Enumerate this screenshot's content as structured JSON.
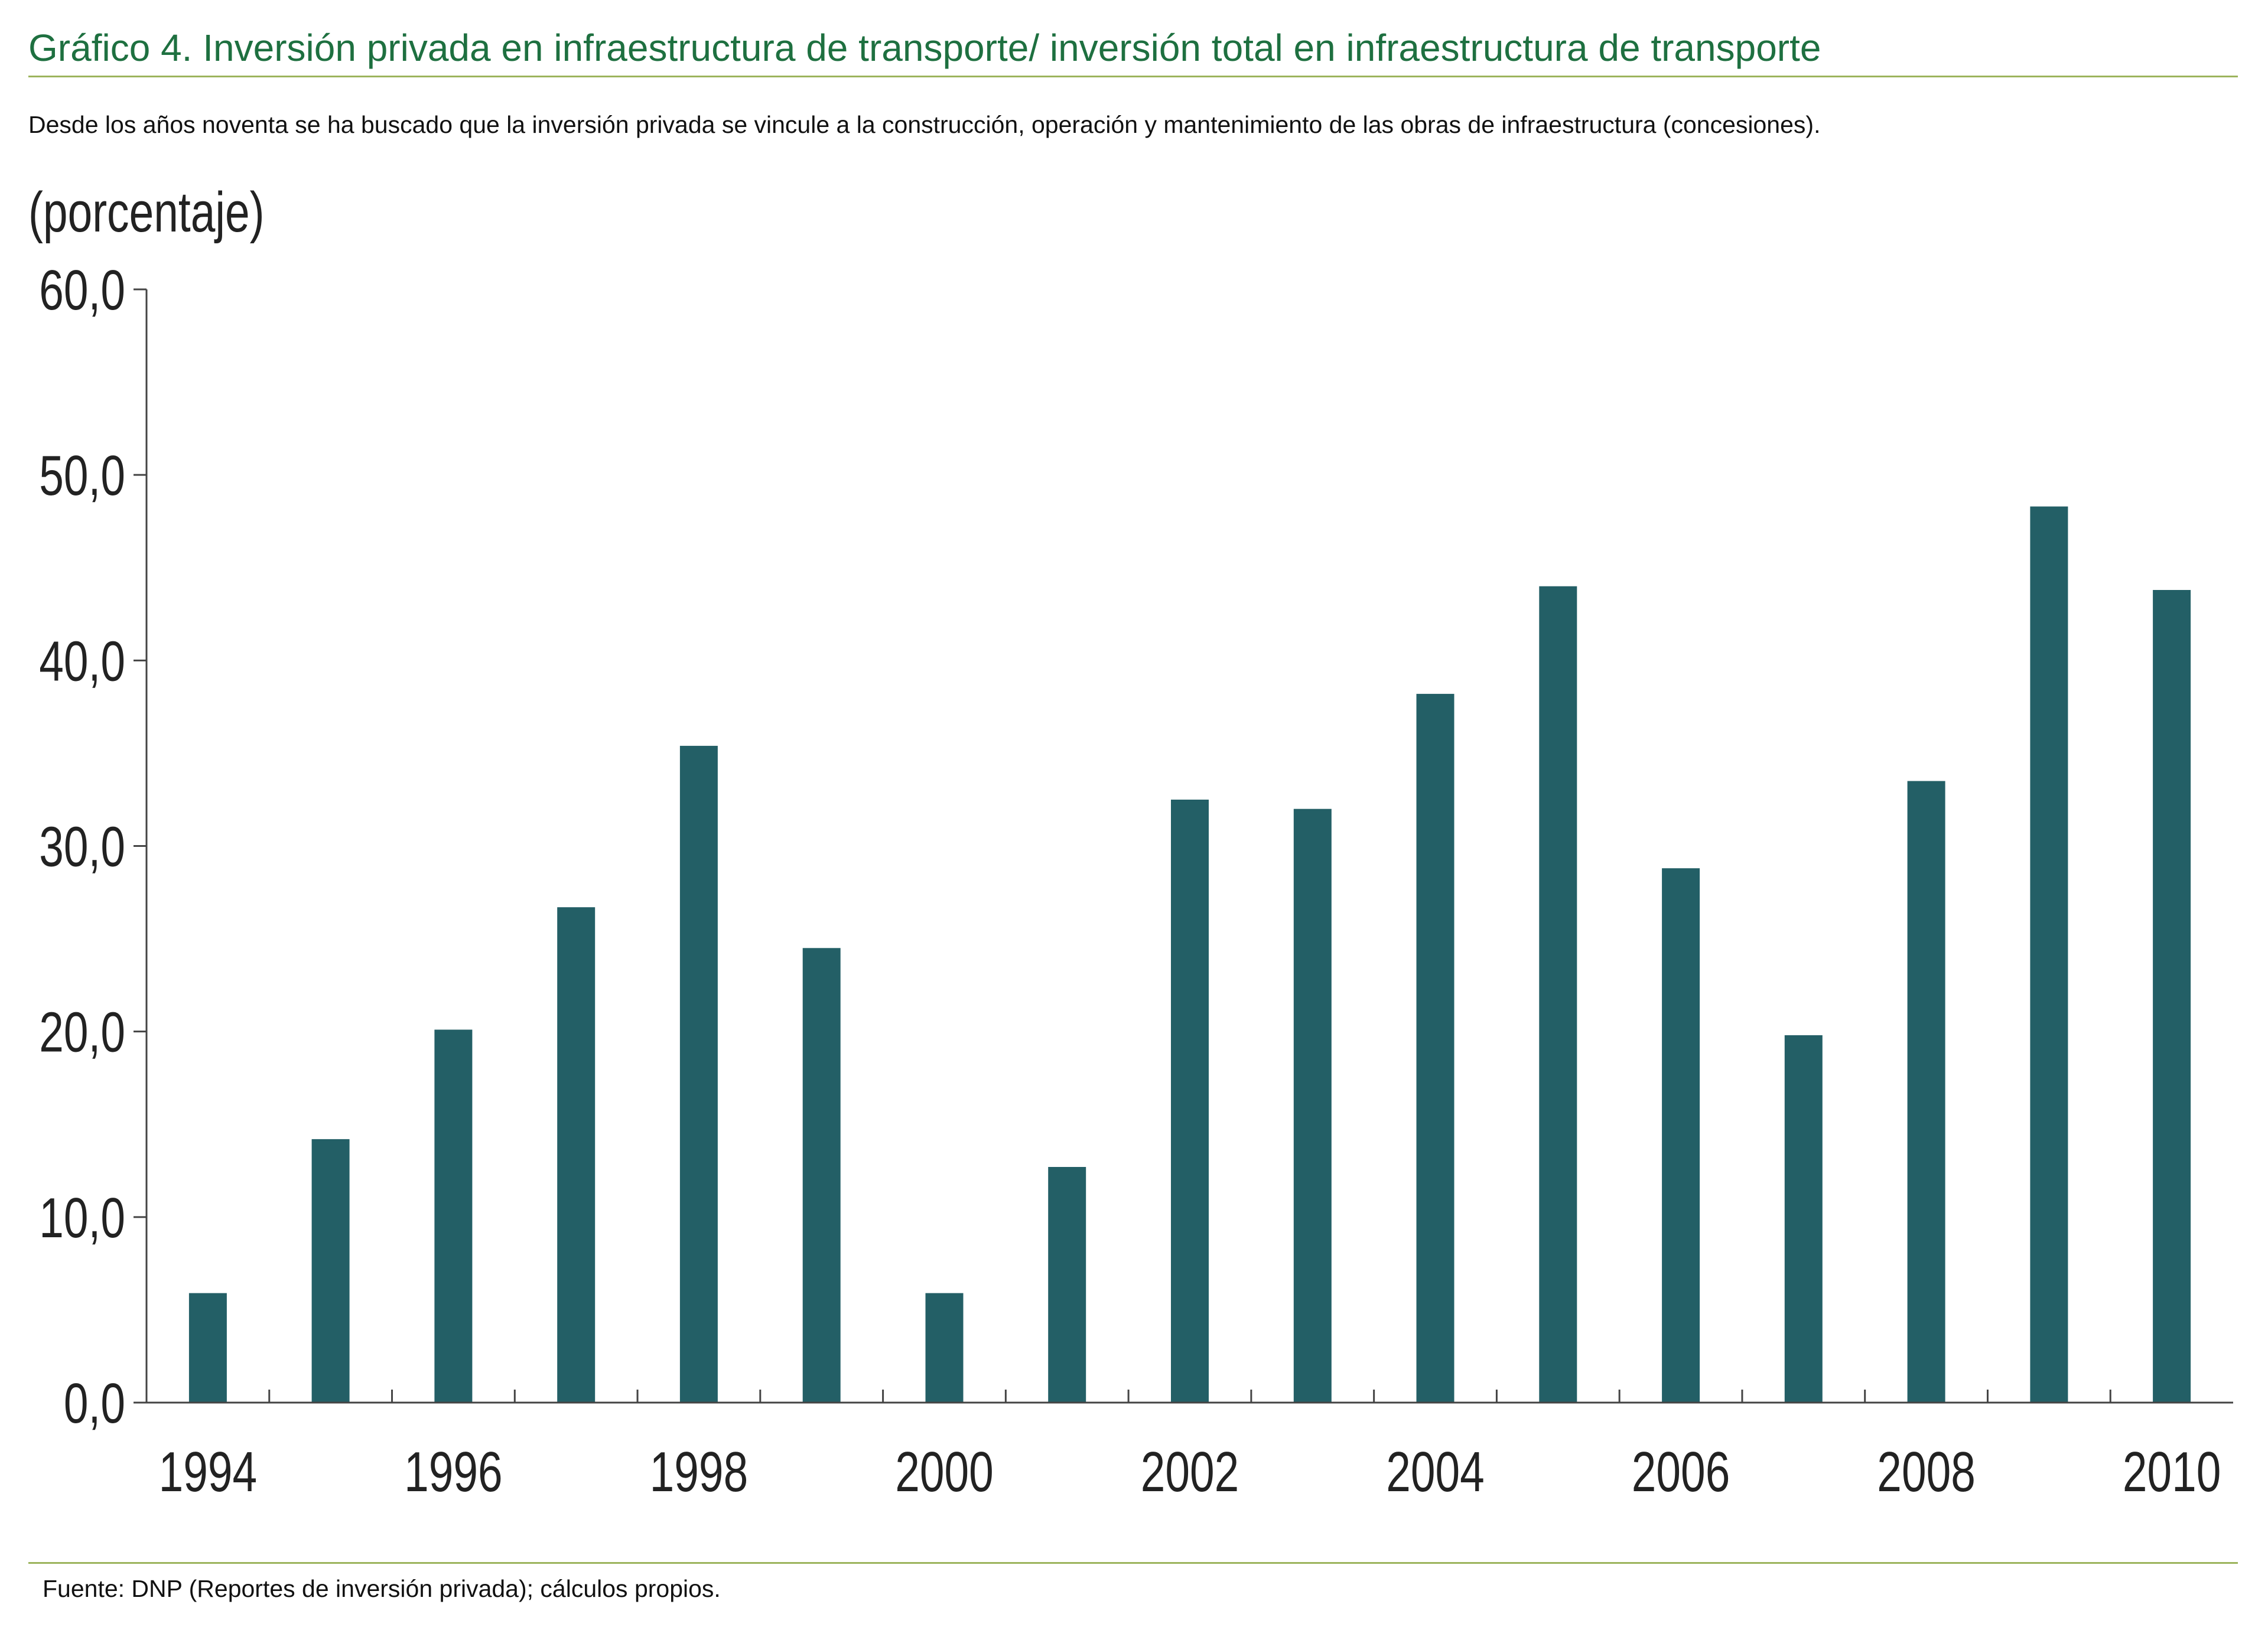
{
  "header": {
    "title": "Gráfico 4. Inversión privada en infraestructura de transporte/ inversión total en infraestructura de transporte",
    "subtitle": "Desde los años noventa se ha buscado que la inversión privada se vincule a la construcción, operación y mantenimiento de las obras de infraestructura (concesiones).",
    "unit_label": "(porcentaje)"
  },
  "footer": {
    "source": "Fuente: DNP (Reportes de inversión privada); cálculos propios."
  },
  "colors": {
    "bar": "#235f66",
    "title": "#1e7040",
    "rule": "#9cb45c",
    "axis": "#444444"
  },
  "chart_data": {
    "type": "bar",
    "title": "Gráfico 4. Inversión privada en infraestructura de transporte/ inversión total en infraestructura de transporte",
    "xlabel": "",
    "ylabel": "(porcentaje)",
    "ylim": [
      0,
      60
    ],
    "yticks": [
      "0,0",
      "10,0",
      "20,0",
      "30,0",
      "40,0",
      "50,0",
      "60,0"
    ],
    "ytick_values": [
      0,
      10,
      20,
      30,
      40,
      50,
      60
    ],
    "categories": [
      "1994",
      "1995",
      "1996",
      "1997",
      "1998",
      "1999",
      "2000",
      "2001",
      "2002",
      "2003",
      "2004",
      "2005",
      "2006",
      "2007",
      "2008",
      "2009",
      "2010"
    ],
    "xtick_labels": [
      "1994",
      "",
      "1996",
      "",
      "1998",
      "",
      "2000",
      "",
      "2002",
      "",
      "2004",
      "",
      "2006",
      "",
      "2008",
      "",
      "2010"
    ],
    "values": [
      5.9,
      14.2,
      20.1,
      26.7,
      35.4,
      24.5,
      5.9,
      12.7,
      32.5,
      32.0,
      38.2,
      44.0,
      28.8,
      19.8,
      33.5,
      48.3,
      43.8
    ],
    "grid": false,
    "legend": "none"
  }
}
